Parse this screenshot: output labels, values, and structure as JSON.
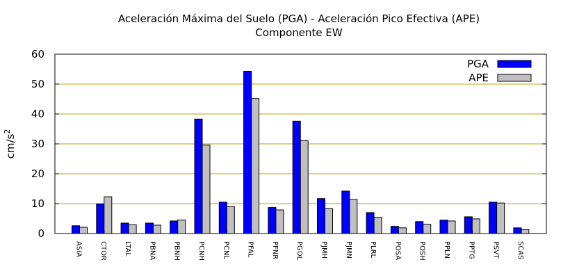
{
  "chart_data": {
    "type": "bar",
    "title": "Aceleración Máxima del Suelo (PGA) -  Aceleración Pico Efectiva (APE)",
    "subtitle": "Componente EW",
    "ylabel": "cm/s",
    "ylabel_sup": "2",
    "ylim": [
      0,
      60
    ],
    "yticks": [
      "0",
      "10",
      "20",
      "30",
      "40",
      "50",
      "60"
    ],
    "grid": true,
    "legend_position": "top-right",
    "categories": [
      "ASIA",
      "CTOR",
      "LTAL",
      "PBNA",
      "PBNH",
      "PCNH",
      "PCNL",
      "PFAL",
      "PFNR",
      "PGOL",
      "PJMH",
      "PJMN",
      "PLRL",
      "POSA",
      "POSH",
      "PPLN",
      "PPTG",
      "PSVT",
      "SCAS"
    ],
    "series": [
      {
        "name": "PGA",
        "color": "#0000ff",
        "values": [
          2.6,
          9.9,
          3.5,
          3.5,
          4.2,
          38.3,
          10.5,
          54.3,
          8.7,
          37.6,
          11.7,
          14.2,
          7.0,
          2.4,
          4.0,
          4.5,
          5.6,
          10.5,
          1.9
        ]
      },
      {
        "name": "APE",
        "color": "#c0c0c0",
        "values": [
          2.1,
          12.3,
          2.9,
          2.8,
          4.5,
          29.6,
          9.0,
          45.2,
          7.9,
          31.1,
          8.4,
          11.4,
          5.4,
          1.9,
          3.1,
          4.2,
          4.9,
          10.2,
          1.3
        ]
      }
    ],
    "grid_color": "#c8a200"
  }
}
